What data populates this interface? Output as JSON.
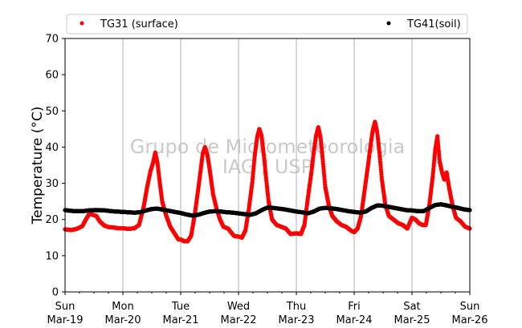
{
  "chart_data": {
    "type": "scatter",
    "title": "",
    "xlabel": "",
    "ylabel": "Temperature (°C)",
    "ylim": [
      0,
      70
    ],
    "yticks": [
      0,
      10,
      20,
      30,
      40,
      50,
      60,
      70
    ],
    "xlim": [
      0,
      7
    ],
    "xticks": [
      {
        "day": "Sun",
        "date": "Mar-19"
      },
      {
        "day": "Mon",
        "date": "Mar-20"
      },
      {
        "day": "Tue",
        "date": "Mar-21"
      },
      {
        "day": "Wed",
        "date": "Mar-22"
      },
      {
        "day": "Thu",
        "date": "Mar-23"
      },
      {
        "day": "Fri",
        "date": "Mar-24"
      },
      {
        "day": "Sat",
        "date": "Mar-25"
      },
      {
        "day": "Sun",
        "date": "Mar-26"
      }
    ],
    "grid": "vertical",
    "legend_position": "top",
    "watermark": [
      "Grupo de Micrometeorologia",
      "IAG / USP"
    ],
    "series": [
      {
        "name": "TG31 (surface)",
        "color": "#ff0000",
        "points": [
          [
            0.0,
            17.3
          ],
          [
            0.1,
            17.1
          ],
          [
            0.2,
            17.4
          ],
          [
            0.3,
            18.2
          ],
          [
            0.36,
            20.0
          ],
          [
            0.42,
            21.6
          ],
          [
            0.48,
            21.3
          ],
          [
            0.54,
            21.0
          ],
          [
            0.6,
            19.5
          ],
          [
            0.68,
            18.3
          ],
          [
            0.76,
            17.9
          ],
          [
            0.84,
            17.8
          ],
          [
            0.92,
            17.6
          ],
          [
            1.0,
            17.6
          ],
          [
            1.1,
            17.4
          ],
          [
            1.2,
            17.6
          ],
          [
            1.28,
            18.5
          ],
          [
            1.36,
            23.5
          ],
          [
            1.42,
            29.0
          ],
          [
            1.48,
            33.5
          ],
          [
            1.52,
            35.5
          ],
          [
            1.56,
            38.5
          ],
          [
            1.6,
            35.5
          ],
          [
            1.64,
            30.0
          ],
          [
            1.68,
            25.0
          ],
          [
            1.74,
            21.5
          ],
          [
            1.82,
            18.0
          ],
          [
            1.9,
            16.0
          ],
          [
            1.96,
            14.5
          ],
          [
            2.0,
            14.5
          ],
          [
            2.06,
            14.0
          ],
          [
            2.12,
            14.0
          ],
          [
            2.18,
            15.5
          ],
          [
            2.24,
            21.0
          ],
          [
            2.3,
            28.0
          ],
          [
            2.34,
            33.0
          ],
          [
            2.38,
            38.0
          ],
          [
            2.42,
            40.0
          ],
          [
            2.46,
            38.0
          ],
          [
            2.5,
            34.0
          ],
          [
            2.56,
            27.0
          ],
          [
            2.62,
            23.0
          ],
          [
            2.68,
            20.0
          ],
          [
            2.74,
            18.0
          ],
          [
            2.82,
            17.5
          ],
          [
            2.92,
            15.5
          ],
          [
            3.0,
            15.3
          ],
          [
            3.06,
            15.0
          ],
          [
            3.12,
            17.0
          ],
          [
            3.18,
            23.0
          ],
          [
            3.24,
            30.5
          ],
          [
            3.28,
            37.5
          ],
          [
            3.32,
            42.5
          ],
          [
            3.36,
            45.0
          ],
          [
            3.4,
            43.0
          ],
          [
            3.44,
            37.5
          ],
          [
            3.48,
            31.0
          ],
          [
            3.52,
            25.0
          ],
          [
            3.58,
            20.0
          ],
          [
            3.66,
            18.5
          ],
          [
            3.74,
            18.0
          ],
          [
            3.82,
            17.5
          ],
          [
            3.9,
            16.0
          ],
          [
            4.0,
            16.2
          ],
          [
            4.08,
            16.0
          ],
          [
            4.14,
            18.5
          ],
          [
            4.2,
            26.0
          ],
          [
            4.26,
            33.0
          ],
          [
            4.3,
            38.5
          ],
          [
            4.34,
            43.0
          ],
          [
            4.38,
            45.5
          ],
          [
            4.42,
            42.5
          ],
          [
            4.46,
            36.0
          ],
          [
            4.5,
            29.0
          ],
          [
            4.56,
            24.0
          ],
          [
            4.62,
            21.0
          ],
          [
            4.7,
            19.5
          ],
          [
            4.78,
            18.5
          ],
          [
            4.86,
            18.0
          ],
          [
            4.94,
            17.0
          ],
          [
            5.0,
            16.5
          ],
          [
            5.06,
            17.5
          ],
          [
            5.12,
            21.0
          ],
          [
            5.18,
            28.0
          ],
          [
            5.24,
            35.0
          ],
          [
            5.28,
            40.0
          ],
          [
            5.32,
            44.5
          ],
          [
            5.36,
            47.0
          ],
          [
            5.4,
            44.0
          ],
          [
            5.44,
            38.0
          ],
          [
            5.48,
            31.0
          ],
          [
            5.54,
            24.0
          ],
          [
            5.6,
            21.0
          ],
          [
            5.68,
            20.0
          ],
          [
            5.76,
            19.0
          ],
          [
            5.84,
            18.5
          ],
          [
            5.92,
            17.5
          ],
          [
            6.0,
            20.5
          ],
          [
            6.06,
            20.0
          ],
          [
            6.12,
            19.0
          ],
          [
            6.18,
            18.5
          ],
          [
            6.24,
            18.5
          ],
          [
            6.3,
            24.0
          ],
          [
            6.36,
            32.0
          ],
          [
            6.4,
            39.0
          ],
          [
            6.44,
            43.0
          ],
          [
            6.48,
            36.0
          ],
          [
            6.52,
            33.0
          ],
          [
            6.56,
            31.0
          ],
          [
            6.6,
            33.0
          ],
          [
            6.64,
            29.0
          ],
          [
            6.7,
            24.0
          ],
          [
            6.76,
            20.5
          ],
          [
            6.84,
            19.5
          ],
          [
            6.92,
            18.0
          ],
          [
            7.0,
            17.5
          ]
        ]
      },
      {
        "name": "TG41(soil)",
        "color": "#000000",
        "points": [
          [
            0.0,
            22.6
          ],
          [
            0.1,
            22.4
          ],
          [
            0.2,
            22.3
          ],
          [
            0.3,
            22.3
          ],
          [
            0.4,
            22.5
          ],
          [
            0.5,
            22.6
          ],
          [
            0.6,
            22.6
          ],
          [
            0.7,
            22.5
          ],
          [
            0.8,
            22.3
          ],
          [
            0.9,
            22.2
          ],
          [
            1.0,
            22.1
          ],
          [
            1.1,
            22.0
          ],
          [
            1.2,
            21.9
          ],
          [
            1.3,
            22.0
          ],
          [
            1.4,
            22.5
          ],
          [
            1.5,
            22.9
          ],
          [
            1.6,
            23.0
          ],
          [
            1.7,
            22.7
          ],
          [
            1.8,
            22.4
          ],
          [
            1.9,
            22.1
          ],
          [
            2.0,
            21.8
          ],
          [
            2.1,
            21.4
          ],
          [
            2.2,
            21.1
          ],
          [
            2.3,
            21.3
          ],
          [
            2.4,
            21.8
          ],
          [
            2.5,
            22.2
          ],
          [
            2.6,
            22.3
          ],
          [
            2.7,
            22.2
          ],
          [
            2.8,
            22.0
          ],
          [
            2.9,
            21.9
          ],
          [
            3.0,
            21.7
          ],
          [
            3.1,
            21.5
          ],
          [
            3.2,
            21.3
          ],
          [
            3.3,
            21.7
          ],
          [
            3.4,
            22.6
          ],
          [
            3.5,
            23.3
          ],
          [
            3.6,
            23.2
          ],
          [
            3.7,
            23.0
          ],
          [
            3.8,
            22.8
          ],
          [
            3.9,
            22.5
          ],
          [
            4.0,
            22.2
          ],
          [
            4.1,
            22.0
          ],
          [
            4.2,
            21.7
          ],
          [
            4.3,
            22.2
          ],
          [
            4.4,
            23.0
          ],
          [
            4.5,
            23.2
          ],
          [
            4.6,
            23.1
          ],
          [
            4.7,
            22.9
          ],
          [
            4.8,
            22.6
          ],
          [
            4.9,
            22.3
          ],
          [
            5.0,
            22.1
          ],
          [
            5.1,
            21.9
          ],
          [
            5.2,
            22.2
          ],
          [
            5.3,
            23.2
          ],
          [
            5.4,
            23.9
          ],
          [
            5.5,
            23.8
          ],
          [
            5.6,
            23.5
          ],
          [
            5.7,
            23.2
          ],
          [
            5.8,
            22.9
          ],
          [
            5.9,
            22.6
          ],
          [
            6.0,
            22.5
          ],
          [
            6.1,
            22.3
          ],
          [
            6.2,
            22.3
          ],
          [
            6.3,
            23.2
          ],
          [
            6.4,
            24.0
          ],
          [
            6.5,
            24.2
          ],
          [
            6.6,
            23.9
          ],
          [
            6.7,
            23.5
          ],
          [
            6.8,
            23.2
          ],
          [
            6.9,
            22.8
          ],
          [
            7.0,
            22.6
          ]
        ]
      }
    ]
  }
}
